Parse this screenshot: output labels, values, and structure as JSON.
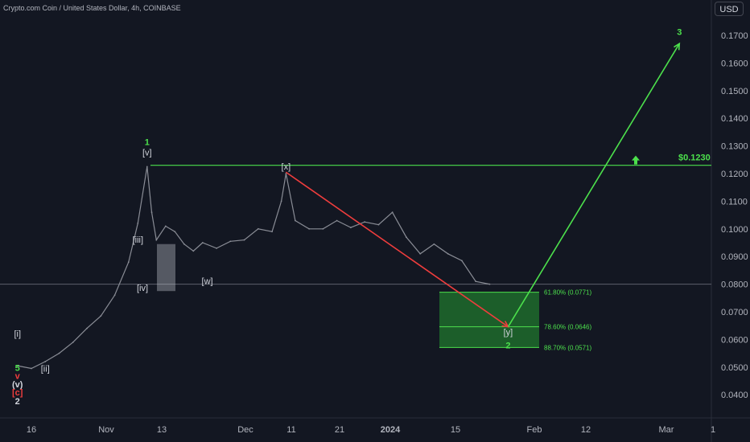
{
  "header": {
    "title": "Crypto.com Coin / United States Dollar, 4h, COINBASE",
    "currency_button": "USD"
  },
  "chart_data": {
    "type": "line",
    "title": "Crypto.com Coin / United States Dollar, 4h, COINBASE",
    "xlabel": "",
    "ylabel": "",
    "ylim": [
      0.035,
      0.1775
    ],
    "grid": false,
    "x_ticks": [
      "16",
      "Nov",
      "13",
      "Dec",
      "11",
      "21",
      "2024",
      "15",
      "Feb",
      "12",
      "Mar",
      "1"
    ],
    "y_ticks": [
      "0.1700",
      "0.1600",
      "0.1500",
      "0.1400",
      "0.1300",
      "0.1200",
      "0.1100",
      "0.1000",
      "0.0900",
      "0.0800",
      "0.0700",
      "0.0600",
      "0.0500",
      "0.0400"
    ],
    "price_series": {
      "name": "",
      "x": [
        "Oct 13",
        "Oct 16",
        "Oct 19",
        "Oct 22",
        "Oct 25",
        "Oct 28",
        "Oct 31",
        "Nov 3",
        "Nov 6",
        "Nov 8",
        "Nov 10",
        "Nov 11",
        "Nov 12",
        "Nov 14",
        "Nov 16",
        "Nov 18",
        "Nov 20",
        "Nov 22",
        "Nov 25",
        "Nov 28",
        "Dec 1",
        "Dec 4",
        "Dec 7",
        "Dec 9",
        "Dec 10",
        "Dec 12",
        "Dec 15",
        "Dec 18",
        "Dec 21",
        "Dec 24",
        "Dec 27",
        "Dec 30",
        "Jan 2",
        "Jan 5",
        "Jan 8",
        "Jan 11",
        "Jan 14",
        "Jan 17",
        "Jan 20",
        "Jan 23"
      ],
      "y": [
        0.0505,
        0.0495,
        0.052,
        0.055,
        0.059,
        0.064,
        0.0685,
        0.076,
        0.088,
        0.102,
        0.1225,
        0.106,
        0.096,
        0.101,
        0.099,
        0.0945,
        0.092,
        0.095,
        0.093,
        0.0955,
        0.096,
        0.1,
        0.099,
        0.11,
        0.12,
        0.103,
        0.1,
        0.1,
        0.103,
        0.1005,
        0.1025,
        0.1015,
        0.106,
        0.097,
        0.091,
        0.0945,
        0.091,
        0.0885,
        0.081,
        0.08
      ]
    },
    "current_price_line": 0.08,
    "resistance": {
      "label": "$0.1230",
      "value": 0.123
    },
    "fib_levels": [
      {
        "label": "61.80% (0.0771)",
        "value": 0.0771
      },
      {
        "label": "78.60% (0.0646)",
        "value": 0.0646
      },
      {
        "label": "88.70% (0.0571)",
        "value": 0.0571
      }
    ],
    "target_zone": {
      "from": 0.0771,
      "to": 0.0571
    },
    "projections": [
      {
        "from_x": "Dec 10",
        "from_y": 0.1205,
        "to_x": "Jan 27",
        "to_y": 0.0646,
        "color": "#ef3d3d"
      },
      {
        "from_x": "Jan 27",
        "from_y": 0.0646,
        "to_x": "Mar 4",
        "to_y": 0.167,
        "color": "#4ce04c"
      }
    ],
    "wave_labels": [
      {
        "text": "1",
        "color": "#4ce04c",
        "x": "Nov 10",
        "y": 0.1303
      },
      {
        "text": "[v]",
        "color": "#d1d4dc",
        "x": "Nov 10",
        "y": 0.1266
      },
      {
        "text": "[iii]",
        "color": "#d1d4dc",
        "x": "Nov 8",
        "y": 0.095
      },
      {
        "text": "[iv]",
        "color": "#d1d4dc",
        "x": "Nov 9",
        "y": 0.0775
      },
      {
        "text": "[w]",
        "color": "#d1d4dc",
        "x": "Nov 23",
        "y": 0.08
      },
      {
        "text": "[x]",
        "color": "#d1d4dc",
        "x": "Dec 10",
        "y": 0.1215
      },
      {
        "text": "[y]",
        "color": "#d1d4dc",
        "x": "Jan 27",
        "y": 0.0616
      },
      {
        "text": "2",
        "color": "#4ce04c",
        "x": "Jan 27",
        "y": 0.0568
      },
      {
        "text": "3",
        "color": "#4ce04c",
        "x": "Mar 4",
        "y": 0.1702
      },
      {
        "text": "[i]",
        "color": "#d1d4dc",
        "x": "Oct 13",
        "y": 0.061
      },
      {
        "text": "[ii]",
        "color": "#d1d4dc",
        "x": "Oct 19",
        "y": 0.0483
      },
      {
        "text": "5",
        "color": "#4ce04c",
        "x": "Oct 13",
        "y": 0.0487
      },
      {
        "text": "v",
        "color": "#ef3d3d",
        "x": "Oct 13",
        "y": 0.0457
      },
      {
        "text": "(v)",
        "color": "#d1d4dc",
        "x": "Oct 13",
        "y": 0.0427
      },
      {
        "text": "[c]",
        "color": "#ef3d3d",
        "x": "Oct 13",
        "y": 0.0397
      },
      {
        "text": "2",
        "color": "#d1d4dc",
        "x": "Oct 13",
        "y": 0.0365
      }
    ],
    "colors": {
      "background": "#131722",
      "price": "#8a8d96",
      "resistance": "#4ce04c",
      "zone": "#1f6b2c",
      "text": "#d1d4dc"
    }
  }
}
